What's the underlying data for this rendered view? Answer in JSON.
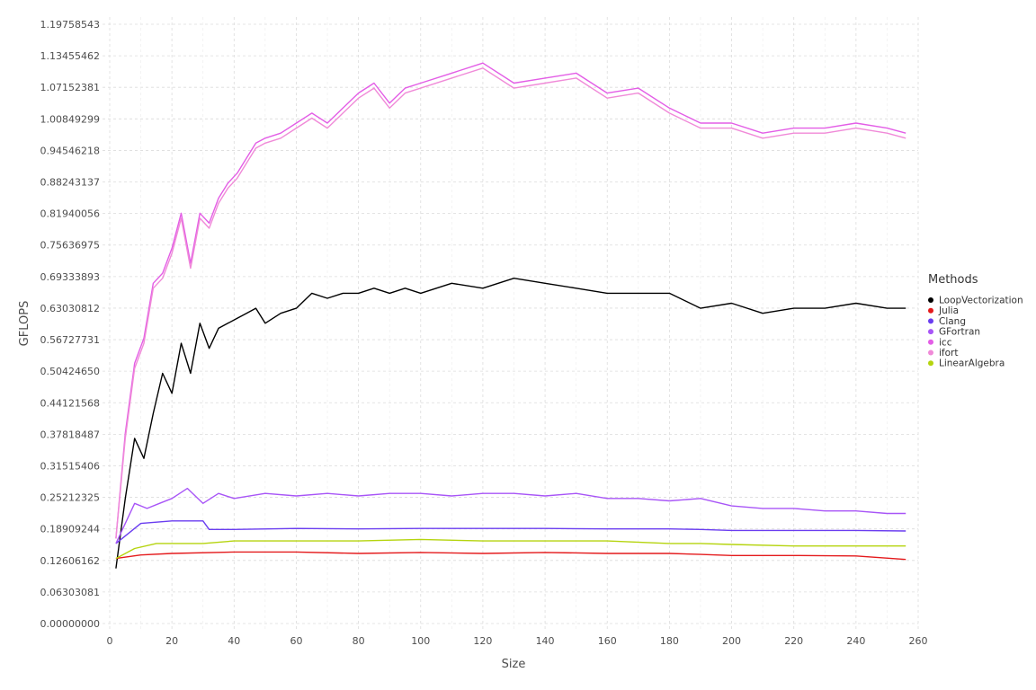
{
  "chart_data": {
    "type": "line",
    "xlabel": "Size",
    "ylabel": "GFLOPS",
    "xlim": [
      0,
      260
    ],
    "ylim": [
      0,
      1.19758543
    ],
    "x_ticks": [
      "0",
      "20",
      "40",
      "60",
      "80",
      "100",
      "120",
      "140",
      "160",
      "180",
      "200",
      "220",
      "240",
      "260"
    ],
    "y_ticks": [
      "0.00000000",
      "0.06303081",
      "0.12606162",
      "0.18909244",
      "0.25212325",
      "0.31515406",
      "0.37818487",
      "0.44121568",
      "0.50424650",
      "0.56727731",
      "0.63030812",
      "0.69333893",
      "0.75636975",
      "0.81940056",
      "0.88243137",
      "0.94546218",
      "1.00849299",
      "1.07152381",
      "1.13455462",
      "1.19758543"
    ],
    "grid": true,
    "legend": {
      "title": "Methods",
      "position": "right"
    },
    "series": [
      {
        "name": "LoopVectorization",
        "color": "#000000",
        "x": [
          2,
          5,
          8,
          11,
          14,
          17,
          20,
          23,
          26,
          29,
          32,
          35,
          38,
          41,
          44,
          47,
          50,
          55,
          60,
          65,
          70,
          75,
          80,
          85,
          90,
          95,
          100,
          110,
          120,
          130,
          140,
          150,
          160,
          170,
          180,
          190,
          200,
          210,
          220,
          230,
          240,
          250,
          256
        ],
        "y": [
          0.11,
          0.25,
          0.37,
          0.33,
          0.42,
          0.5,
          0.46,
          0.56,
          0.5,
          0.6,
          0.55,
          0.59,
          0.6,
          0.61,
          0.62,
          0.63,
          0.6,
          0.62,
          0.63,
          0.66,
          0.65,
          0.66,
          0.66,
          0.67,
          0.66,
          0.67,
          0.66,
          0.68,
          0.67,
          0.69,
          0.68,
          0.67,
          0.66,
          0.66,
          0.66,
          0.63,
          0.64,
          0.62,
          0.63,
          0.63,
          0.64,
          0.63,
          0.63
        ]
      },
      {
        "name": "Julia",
        "color": "#e41a1c",
        "x": [
          2,
          10,
          20,
          40,
          60,
          80,
          100,
          120,
          140,
          160,
          180,
          190,
          200,
          220,
          240,
          256
        ],
        "y": [
          0.13,
          0.137,
          0.14,
          0.143,
          0.143,
          0.14,
          0.142,
          0.14,
          0.142,
          0.14,
          0.14,
          0.138,
          0.136,
          0.136,
          0.135,
          0.128
        ]
      },
      {
        "name": "Clang",
        "color": "#6a3df0",
        "x": [
          2,
          10,
          20,
          30,
          32,
          40,
          60,
          80,
          100,
          120,
          140,
          160,
          180,
          190,
          200,
          220,
          240,
          256
        ],
        "y": [
          0.16,
          0.2,
          0.205,
          0.205,
          0.188,
          0.188,
          0.19,
          0.189,
          0.19,
          0.19,
          0.19,
          0.189,
          0.189,
          0.188,
          0.186,
          0.186,
          0.186,
          0.185
        ]
      },
      {
        "name": "GFortran",
        "color": "#a855f7",
        "x": [
          2,
          8,
          12,
          16,
          20,
          25,
          30,
          35,
          40,
          50,
          60,
          70,
          80,
          90,
          100,
          110,
          120,
          130,
          140,
          150,
          160,
          170,
          180,
          190,
          200,
          210,
          220,
          230,
          240,
          250,
          256
        ],
        "y": [
          0.16,
          0.24,
          0.23,
          0.24,
          0.25,
          0.27,
          0.24,
          0.26,
          0.25,
          0.26,
          0.255,
          0.26,
          0.255,
          0.26,
          0.26,
          0.255,
          0.26,
          0.26,
          0.255,
          0.26,
          0.25,
          0.25,
          0.245,
          0.25,
          0.235,
          0.23,
          0.23,
          0.225,
          0.225,
          0.22,
          0.22
        ]
      },
      {
        "name": "icc",
        "color": "#e35de6",
        "x": [
          2,
          5,
          8,
          11,
          14,
          17,
          20,
          23,
          26,
          29,
          32,
          35,
          38,
          41,
          44,
          47,
          50,
          55,
          60,
          65,
          70,
          75,
          80,
          85,
          90,
          95,
          100,
          110,
          120,
          130,
          140,
          150,
          160,
          170,
          180,
          190,
          200,
          210,
          220,
          230,
          240,
          250,
          256
        ],
        "y": [
          0.17,
          0.38,
          0.52,
          0.57,
          0.68,
          0.7,
          0.75,
          0.82,
          0.72,
          0.82,
          0.8,
          0.85,
          0.88,
          0.9,
          0.93,
          0.96,
          0.97,
          0.98,
          1.0,
          1.02,
          1.0,
          1.03,
          1.06,
          1.08,
          1.04,
          1.07,
          1.08,
          1.1,
          1.12,
          1.08,
          1.09,
          1.1,
          1.06,
          1.07,
          1.03,
          1.0,
          1.0,
          0.98,
          0.99,
          0.99,
          1.0,
          0.99,
          0.98
        ]
      },
      {
        "name": "ifort",
        "color": "#f08ad8",
        "x": [
          2,
          5,
          8,
          11,
          14,
          17,
          20,
          23,
          26,
          29,
          32,
          35,
          38,
          41,
          44,
          47,
          50,
          55,
          60,
          65,
          70,
          75,
          80,
          85,
          90,
          95,
          100,
          110,
          120,
          130,
          140,
          150,
          160,
          170,
          180,
          190,
          200,
          210,
          220,
          230,
          240,
          250,
          256
        ],
        "y": [
          0.17,
          0.37,
          0.51,
          0.56,
          0.67,
          0.69,
          0.74,
          0.81,
          0.71,
          0.81,
          0.79,
          0.84,
          0.87,
          0.89,
          0.92,
          0.95,
          0.96,
          0.97,
          0.99,
          1.01,
          0.99,
          1.02,
          1.05,
          1.07,
          1.03,
          1.06,
          1.07,
          1.09,
          1.11,
          1.07,
          1.08,
          1.09,
          1.05,
          1.06,
          1.02,
          0.99,
          0.99,
          0.97,
          0.98,
          0.98,
          0.99,
          0.98,
          0.97
        ]
      },
      {
        "name": "LinearAlgebra",
        "color": "#b5d40e",
        "x": [
          2,
          8,
          15,
          20,
          30,
          40,
          60,
          80,
          100,
          120,
          140,
          160,
          180,
          190,
          200,
          220,
          240,
          256
        ],
        "y": [
          0.13,
          0.15,
          0.16,
          0.16,
          0.16,
          0.165,
          0.165,
          0.165,
          0.168,
          0.165,
          0.165,
          0.165,
          0.16,
          0.16,
          0.158,
          0.155,
          0.155,
          0.155
        ]
      }
    ]
  }
}
